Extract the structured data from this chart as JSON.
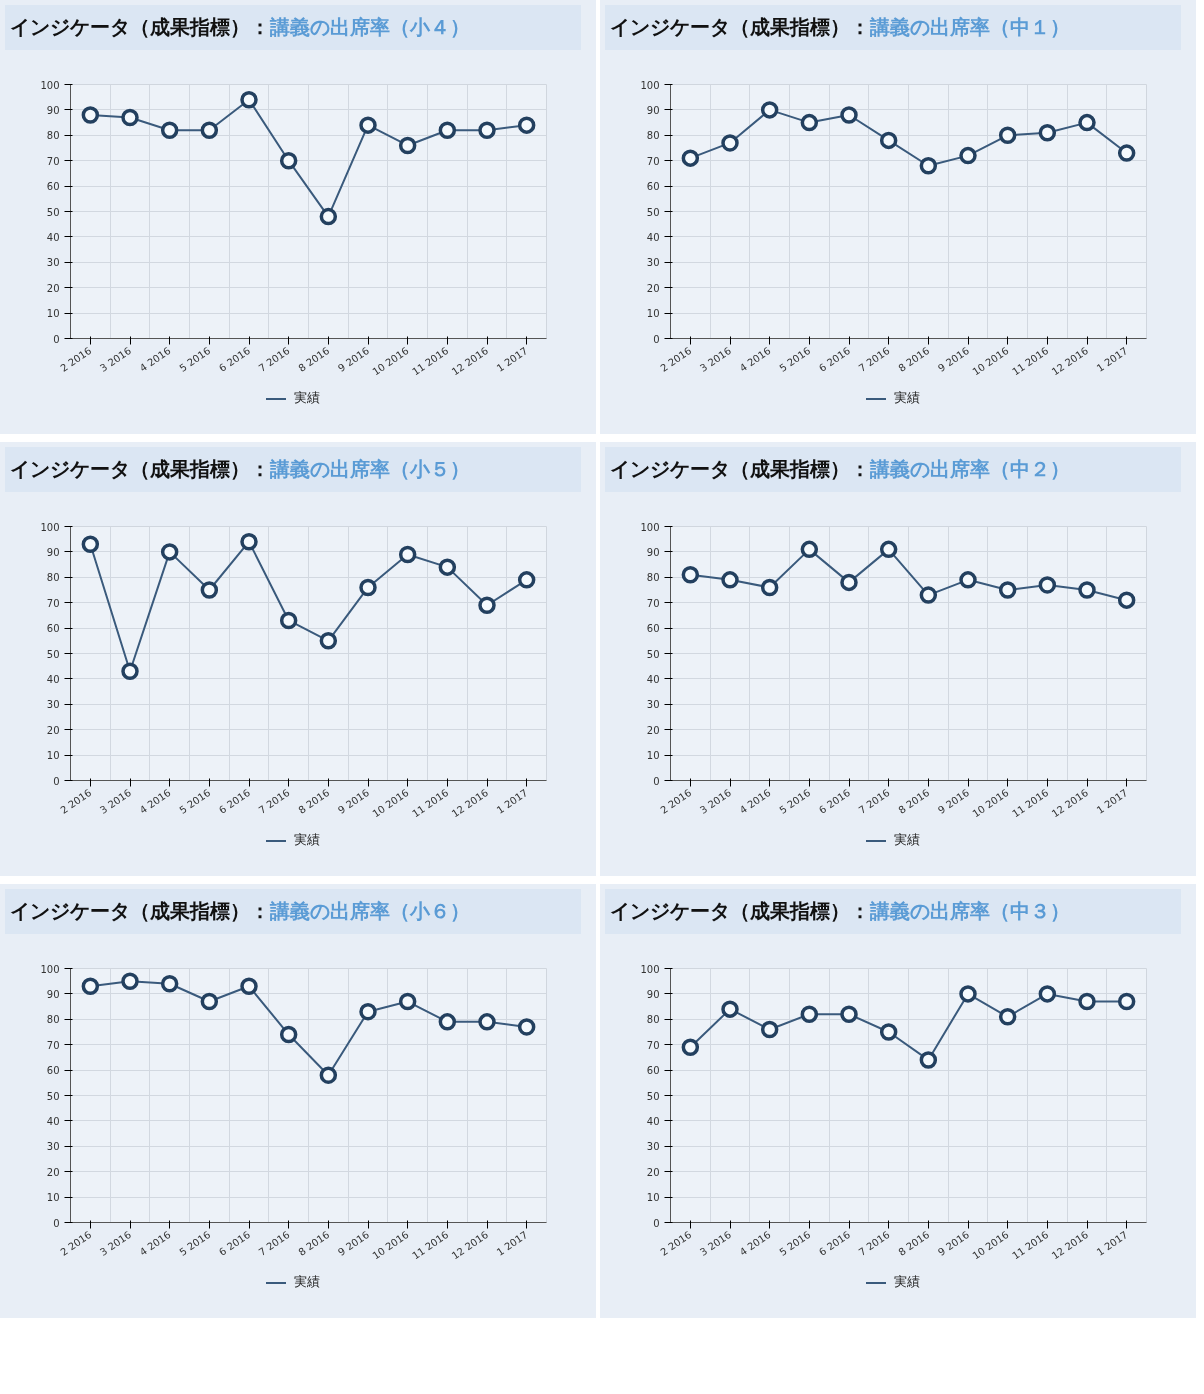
{
  "chart_data": [
    {
      "type": "line",
      "title": "インジケータ（成果指標）：",
      "subtitle": "講義の出席率（小４）",
      "categories": [
        "2 2016",
        "3 2016",
        "4 2016",
        "5 2016",
        "6 2016",
        "7 2016",
        "8 2016",
        "9 2016",
        "10 2016",
        "11 2016",
        "12 2016",
        "1 2017"
      ],
      "series": [
        {
          "name": "実績",
          "color": "#3a5a7c",
          "values": [
            88,
            87,
            82,
            82,
            94,
            70,
            48,
            84,
            76,
            82,
            82,
            84
          ]
        }
      ],
      "ylim": [
        0,
        100
      ],
      "yticks": [
        0,
        10,
        20,
        30,
        40,
        50,
        60,
        70,
        80,
        90,
        100
      ],
      "grid": true,
      "legend": "bottom",
      "marker": "circle"
    },
    {
      "type": "line",
      "title": "インジケータ（成果指標）：",
      "subtitle": "講義の出席率（中１）",
      "categories": [
        "2 2016",
        "3 2016",
        "4 2016",
        "5 2016",
        "6 2016",
        "7 2016",
        "8 2016",
        "9 2016",
        "10 2016",
        "11 2016",
        "12 2016",
        "1 2017"
      ],
      "series": [
        {
          "name": "実績",
          "color": "#3a5a7c",
          "values": [
            71,
            77,
            90,
            85,
            88,
            78,
            68,
            72,
            80,
            81,
            85,
            73
          ]
        }
      ],
      "ylim": [
        0,
        100
      ],
      "yticks": [
        0,
        10,
        20,
        30,
        40,
        50,
        60,
        70,
        80,
        90,
        100
      ],
      "grid": true,
      "legend": "bottom",
      "marker": "circle"
    },
    {
      "type": "line",
      "title": "インジケータ（成果指標）：",
      "subtitle": "講義の出席率（小５）",
      "categories": [
        "2 2016",
        "3 2016",
        "4 2016",
        "5 2016",
        "6 2016",
        "7 2016",
        "8 2016",
        "9 2016",
        "10 2016",
        "11 2016",
        "12 2016",
        "1 2017"
      ],
      "series": [
        {
          "name": "実績",
          "color": "#3a5a7c",
          "values": [
            93,
            43,
            90,
            75,
            94,
            63,
            55,
            76,
            89,
            84,
            69,
            79
          ]
        }
      ],
      "ylim": [
        0,
        100
      ],
      "yticks": [
        0,
        10,
        20,
        30,
        40,
        50,
        60,
        70,
        80,
        90,
        100
      ],
      "grid": true,
      "legend": "bottom",
      "marker": "circle"
    },
    {
      "type": "line",
      "title": "インジケータ（成果指標）：",
      "subtitle": "講義の出席率（中２）",
      "categories": [
        "2 2016",
        "3 2016",
        "4 2016",
        "5 2016",
        "6 2016",
        "7 2016",
        "8 2016",
        "9 2016",
        "10 2016",
        "11 2016",
        "12 2016",
        "1 2017"
      ],
      "series": [
        {
          "name": "実績",
          "color": "#3a5a7c",
          "values": [
            81,
            79,
            76,
            91,
            78,
            91,
            73,
            79,
            75,
            77,
            75,
            71
          ]
        }
      ],
      "ylim": [
        0,
        100
      ],
      "yticks": [
        0,
        10,
        20,
        30,
        40,
        50,
        60,
        70,
        80,
        90,
        100
      ],
      "grid": true,
      "legend": "bottom",
      "marker": "circle"
    },
    {
      "type": "line",
      "title": "インジケータ（成果指標）：",
      "subtitle": "講義の出席率（小６）",
      "categories": [
        "2 2016",
        "3 2016",
        "4 2016",
        "5 2016",
        "6 2016",
        "7 2016",
        "8 2016",
        "9 2016",
        "10 2016",
        "11 2016",
        "12 2016",
        "1 2017"
      ],
      "series": [
        {
          "name": "実績",
          "color": "#3a5a7c",
          "values": [
            93,
            95,
            94,
            87,
            93,
            74,
            58,
            83,
            87,
            79,
            79,
            77
          ]
        }
      ],
      "ylim": [
        0,
        100
      ],
      "yticks": [
        0,
        10,
        20,
        30,
        40,
        50,
        60,
        70,
        80,
        90,
        100
      ],
      "grid": true,
      "legend": "bottom",
      "marker": "circle"
    },
    {
      "type": "line",
      "title": "インジケータ（成果指標）：",
      "subtitle": "講義の出席率（中３）",
      "categories": [
        "2 2016",
        "3 2016",
        "4 2016",
        "5 2016",
        "6 2016",
        "7 2016",
        "8 2016",
        "9 2016",
        "10 2016",
        "11 2016",
        "12 2016",
        "1 2017"
      ],
      "series": [
        {
          "name": "実績",
          "color": "#3a5a7c",
          "values": [
            69,
            84,
            76,
            82,
            82,
            75,
            64,
            90,
            81,
            90,
            87,
            87
          ]
        }
      ],
      "ylim": [
        0,
        100
      ],
      "yticks": [
        0,
        10,
        20,
        30,
        40,
        50,
        60,
        70,
        80,
        90,
        100
      ],
      "grid": true,
      "legend": "bottom",
      "marker": "circle"
    }
  ]
}
